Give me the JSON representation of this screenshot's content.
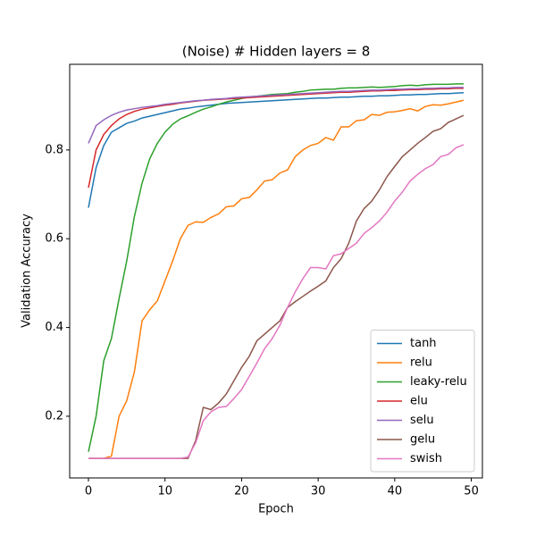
{
  "chart_data": {
    "type": "line",
    "title": "(Noise) # Hidden layers = 8",
    "xlabel": "Epoch",
    "ylabel": "Validation Accuracy",
    "x": [
      0,
      1,
      2,
      3,
      4,
      5,
      6,
      7,
      8,
      9,
      10,
      11,
      12,
      13,
      14,
      15,
      16,
      17,
      18,
      19,
      20,
      21,
      22,
      23,
      24,
      25,
      26,
      27,
      28,
      29,
      30,
      31,
      32,
      33,
      34,
      35,
      36,
      37,
      38,
      39,
      40,
      41,
      42,
      43,
      44,
      45,
      46,
      47,
      48,
      49
    ],
    "xlim": [
      -2.45,
      51.45
    ],
    "xticks": [
      0,
      10,
      20,
      30,
      40,
      50
    ],
    "ylim": [
      0.061,
      0.993
    ],
    "yticks": [
      0.2,
      0.4,
      0.6,
      0.8
    ],
    "legend": "lower right",
    "series": [
      {
        "name": "tanh",
        "color": "#1f77b4",
        "values": [
          0.67,
          0.76,
          0.81,
          0.84,
          0.85,
          0.86,
          0.865,
          0.872,
          0.876,
          0.88,
          0.884,
          0.888,
          0.892,
          0.894,
          0.897,
          0.899,
          0.901,
          0.903,
          0.905,
          0.906,
          0.907,
          0.908,
          0.909,
          0.91,
          0.911,
          0.912,
          0.913,
          0.914,
          0.915,
          0.916,
          0.917,
          0.917,
          0.918,
          0.919,
          0.919,
          0.92,
          0.921,
          0.921,
          0.922,
          0.922,
          0.923,
          0.924,
          0.924,
          0.925,
          0.925,
          0.926,
          0.927,
          0.927,
          0.928,
          0.929
        ]
      },
      {
        "name": "relu",
        "color": "#ff7f0e",
        "values": [
          0.105,
          0.105,
          0.105,
          0.11,
          0.2,
          0.235,
          0.3,
          0.415,
          0.44,
          0.46,
          0.505,
          0.55,
          0.6,
          0.63,
          0.638,
          0.637,
          0.648,
          0.656,
          0.672,
          0.674,
          0.69,
          0.693,
          0.71,
          0.73,
          0.733,
          0.748,
          0.755,
          0.785,
          0.8,
          0.81,
          0.815,
          0.828,
          0.822,
          0.852,
          0.852,
          0.866,
          0.868,
          0.88,
          0.878,
          0.885,
          0.886,
          0.889,
          0.893,
          0.888,
          0.898,
          0.902,
          0.901,
          0.904,
          0.908,
          0.912
        ]
      },
      {
        "name": "leaky-relu",
        "color": "#2ca02c",
        "values": [
          0.12,
          0.2,
          0.325,
          0.375,
          0.465,
          0.55,
          0.65,
          0.725,
          0.78,
          0.815,
          0.84,
          0.858,
          0.87,
          0.877,
          0.885,
          0.892,
          0.897,
          0.903,
          0.908,
          0.912,
          0.916,
          0.919,
          0.921,
          0.923,
          0.925,
          0.926,
          0.927,
          0.93,
          0.932,
          0.935,
          0.936,
          0.937,
          0.937,
          0.939,
          0.94,
          0.94,
          0.941,
          0.942,
          0.941,
          0.942,
          0.943,
          0.945,
          0.946,
          0.945,
          0.947,
          0.948,
          0.948,
          0.948,
          0.949,
          0.949
        ]
      },
      {
        "name": "elu",
        "color": "#d62728",
        "values": [
          0.715,
          0.8,
          0.835,
          0.855,
          0.87,
          0.88,
          0.887,
          0.892,
          0.895,
          0.898,
          0.901,
          0.903,
          0.906,
          0.908,
          0.91,
          0.912,
          0.913,
          0.914,
          0.915,
          0.916,
          0.917,
          0.918,
          0.919,
          0.92,
          0.921,
          0.922,
          0.923,
          0.924,
          0.925,
          0.926,
          0.927,
          0.928,
          0.929,
          0.93,
          0.93,
          0.931,
          0.932,
          0.933,
          0.933,
          0.934,
          0.934,
          0.935,
          0.936,
          0.936,
          0.937,
          0.937,
          0.938,
          0.938,
          0.939,
          0.939
        ]
      },
      {
        "name": "selu",
        "color": "#9467bd",
        "values": [
          0.815,
          0.855,
          0.868,
          0.878,
          0.885,
          0.89,
          0.893,
          0.896,
          0.898,
          0.9,
          0.903,
          0.905,
          0.907,
          0.909,
          0.911,
          0.912,
          0.914,
          0.915,
          0.916,
          0.918,
          0.919,
          0.92,
          0.921,
          0.922,
          0.923,
          0.924,
          0.925,
          0.926,
          0.927,
          0.928,
          0.929,
          0.93,
          0.931,
          0.932,
          0.932,
          0.933,
          0.934,
          0.935,
          0.935,
          0.936,
          0.937,
          0.937,
          0.938,
          0.938,
          0.939,
          0.939,
          0.94,
          0.94,
          0.941,
          0.941
        ]
      },
      {
        "name": "gelu",
        "color": "#8c564b",
        "values": [
          0.105,
          0.105,
          0.105,
          0.105,
          0.105,
          0.105,
          0.105,
          0.105,
          0.105,
          0.105,
          0.105,
          0.105,
          0.105,
          0.105,
          0.145,
          0.22,
          0.215,
          0.23,
          0.25,
          0.28,
          0.31,
          0.335,
          0.37,
          0.385,
          0.4,
          0.415,
          0.445,
          0.458,
          0.47,
          0.482,
          0.493,
          0.505,
          0.535,
          0.555,
          0.59,
          0.64,
          0.668,
          0.685,
          0.71,
          0.74,
          0.763,
          0.785,
          0.8,
          0.815,
          0.828,
          0.842,
          0.848,
          0.862,
          0.87,
          0.878
        ]
      },
      {
        "name": "swish",
        "color": "#e377c2",
        "values": [
          0.105,
          0.105,
          0.105,
          0.105,
          0.105,
          0.105,
          0.105,
          0.105,
          0.105,
          0.105,
          0.105,
          0.105,
          0.105,
          0.108,
          0.14,
          0.19,
          0.21,
          0.22,
          0.222,
          0.24,
          0.26,
          0.29,
          0.32,
          0.352,
          0.375,
          0.405,
          0.445,
          0.48,
          0.51,
          0.535,
          0.535,
          0.532,
          0.562,
          0.566,
          0.578,
          0.59,
          0.612,
          0.625,
          0.64,
          0.66,
          0.685,
          0.705,
          0.73,
          0.745,
          0.758,
          0.767,
          0.785,
          0.79,
          0.805,
          0.812
        ]
      }
    ]
  }
}
